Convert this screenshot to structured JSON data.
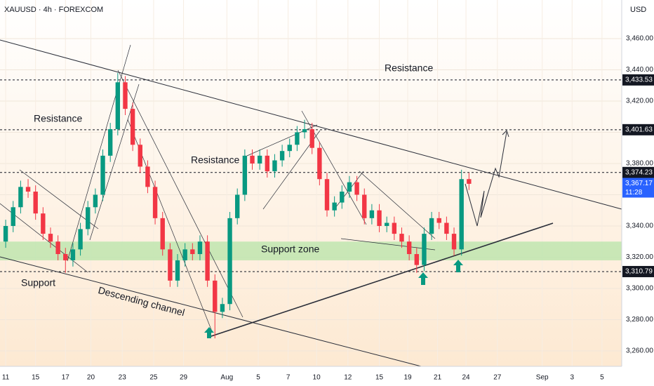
{
  "chart_data": {
    "type": "candlestick",
    "title": "XAUUSD · 4h · FOREXCOM",
    "currency": "USD",
    "xlim": [
      -0.38,
      41.22
    ],
    "ylim": [
      3250.1,
      3484.7
    ],
    "xticks": [
      {
        "value": 0,
        "label": "11"
      },
      {
        "value": 2,
        "label": "15"
      },
      {
        "value": 4,
        "label": "17"
      },
      {
        "value": 5.7,
        "label": "20"
      },
      {
        "value": 7.8,
        "label": "23"
      },
      {
        "value": 9.9,
        "label": "25"
      },
      {
        "value": 11.9,
        "label": "29"
      },
      {
        "value": 14.8,
        "label": "Aug"
      },
      {
        "value": 16.9,
        "label": "5"
      },
      {
        "value": 18.9,
        "label": "7"
      },
      {
        "value": 20.8,
        "label": "10"
      },
      {
        "value": 22.9,
        "label": "12"
      },
      {
        "value": 25,
        "label": "15"
      },
      {
        "value": 26.9,
        "label": "19"
      },
      {
        "value": 28.9,
        "label": "21"
      },
      {
        "value": 30.8,
        "label": "24"
      },
      {
        "value": 32.9,
        "label": "27"
      },
      {
        "value": 35.9,
        "label": "Sep"
      },
      {
        "value": 37.9,
        "label": "3"
      },
      {
        "value": 39.9,
        "label": "5"
      }
    ],
    "yticks": [
      {
        "value": 3260,
        "label": "3,260.00"
      },
      {
        "value": 3280,
        "label": "3,280.00"
      },
      {
        "value": 3300,
        "label": "3,300.00"
      },
      {
        "value": 3320,
        "label": "3,320.00"
      },
      {
        "value": 3340,
        "label": "3,340.00"
      },
      {
        "value": 3360,
        "label": "3,360.00"
      },
      {
        "value": 3380,
        "label": "3,380.00"
      },
      {
        "value": 3400,
        "label": "3,400.00"
      },
      {
        "value": 3420,
        "label": "3,420.00"
      },
      {
        "value": 3440,
        "label": "3,440.00"
      },
      {
        "value": 3460,
        "label": "3,460.00"
      }
    ],
    "levels": [
      {
        "value": 3433.53,
        "label": "3,433.53"
      },
      {
        "value": 3401.63,
        "label": "3,401.63"
      },
      {
        "value": 3374.23,
        "label": "3,374.23"
      },
      {
        "value": 3310.79,
        "label": "3,310.79"
      }
    ],
    "last_price": {
      "value": 3367.17,
      "label": "3,367.17",
      "countdown": "11:28"
    },
    "support_zone": {
      "label": "Support zone",
      "low": 3318,
      "high": 3330
    },
    "annotations": [
      "Resistance",
      "Resistance",
      "Resistance",
      "Support",
      "Descending channel"
    ],
    "up_color": "#089981",
    "down_color": "#f23645",
    "x": [
      0,
      0.5,
      1,
      1.5,
      2,
      2.5,
      3,
      3.5,
      4,
      4.5,
      5,
      5.5,
      6,
      6.5,
      7,
      7.5,
      8,
      8.5,
      9,
      9.5,
      10,
      10.5,
      11,
      11.5,
      12,
      12.5,
      13,
      13.5,
      14,
      14.5,
      15,
      15.5,
      16,
      16.5,
      17,
      17.5,
      18,
      18.5,
      19,
      19.5,
      20,
      20.5,
      21,
      21.5,
      22,
      22.5,
      23,
      23.5,
      24,
      24.5,
      25,
      25.5,
      26,
      26.5,
      27,
      27.5,
      28,
      28.5,
      29,
      29.5,
      30,
      30.5,
      31
    ],
    "open": [
      3330,
      3340,
      3352,
      3365,
      3362,
      3348,
      3335,
      3330,
      3322,
      3318,
      3325,
      3338,
      3352,
      3360,
      3385,
      3402,
      3432,
      3415,
      3392,
      3378,
      3365,
      3345,
      3325,
      3305,
      3318,
      3325,
      3322,
      3330,
      3305,
      3285,
      3290,
      3345,
      3360,
      3385,
      3380,
      3385,
      3375,
      3382,
      3388,
      3392,
      3400,
      3402,
      3390,
      3370,
      3350,
      3355,
      3362,
      3368,
      3360,
      3345,
      3350,
      3340,
      3342,
      3335,
      3330,
      3322,
      3315,
      3335,
      3345,
      3342,
      3335,
      3325,
      3370
    ],
    "high": [
      3344,
      3356,
      3369,
      3370,
      3366,
      3352,
      3339,
      3334,
      3326,
      3329,
      3342,
      3356,
      3364,
      3389,
      3406,
      3438,
      3436,
      3419,
      3396,
      3382,
      3369,
      3349,
      3329,
      3322,
      3329,
      3329,
      3334,
      3334,
      3309,
      3294,
      3349,
      3364,
      3389,
      3389,
      3389,
      3389,
      3386,
      3392,
      3396,
      3404,
      3408,
      3406,
      3394,
      3374,
      3359,
      3366,
      3372,
      3372,
      3364,
      3354,
      3354,
      3346,
      3346,
      3339,
      3334,
      3326,
      3339,
      3349,
      3349,
      3346,
      3339,
      3376,
      3374
    ],
    "low": [
      3326,
      3336,
      3348,
      3358,
      3344,
      3331,
      3326,
      3318,
      3310,
      3314,
      3321,
      3334,
      3348,
      3356,
      3381,
      3398,
      3411,
      3388,
      3374,
      3361,
      3341,
      3321,
      3301,
      3301,
      3314,
      3318,
      3318,
      3301,
      3268,
      3281,
      3286,
      3341,
      3356,
      3376,
      3376,
      3371,
      3371,
      3378,
      3384,
      3388,
      3396,
      3386,
      3366,
      3346,
      3346,
      3351,
      3358,
      3356,
      3341,
      3341,
      3336,
      3336,
      3331,
      3326,
      3318,
      3310,
      3311,
      3331,
      3338,
      3331,
      3321,
      3321,
      3363
    ],
    "close": [
      3340,
      3352,
      3365,
      3362,
      3348,
      3335,
      3330,
      3322,
      3318,
      3325,
      3338,
      3352,
      3360,
      3385,
      3402,
      3432,
      3415,
      3392,
      3378,
      3365,
      3345,
      3325,
      3305,
      3318,
      3325,
      3322,
      3330,
      3305,
      3285,
      3290,
      3345,
      3360,
      3385,
      3380,
      3385,
      3375,
      3382,
      3388,
      3392,
      3400,
      3402,
      3390,
      3370,
      3350,
      3355,
      3362,
      3368,
      3360,
      3345,
      3350,
      3340,
      3342,
      3335,
      3330,
      3322,
      3315,
      3335,
      3345,
      3342,
      3335,
      3325,
      3370,
      3367
    ]
  }
}
